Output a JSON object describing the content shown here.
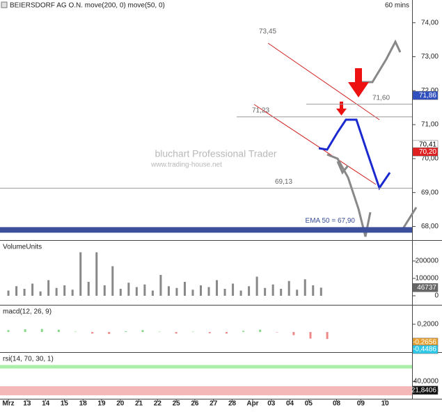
{
  "chart_data": [
    {
      "type": "line",
      "title": "BEIERSDORF AG O.N. move(200, 0) move(50, 0)",
      "subtitle": "60 mins",
      "watermark": [
        "bluchart Professional Trader",
        "www.trading-house.net"
      ],
      "xlim": [
        -0.45,
        21.65
      ],
      "ylim": [
        67.6,
        74.67
      ],
      "yticks": [
        {
          "value": 68,
          "label": "68,00"
        },
        {
          "value": 69,
          "label": "69,00"
        },
        {
          "value": 70,
          "label": "70,00"
        },
        {
          "value": 71,
          "label": "71,00"
        },
        {
          "value": 72,
          "label": "72,00"
        },
        {
          "value": 73,
          "label": "73,00"
        },
        {
          "value": 74,
          "label": "74,00"
        }
      ],
      "series": [
        {
          "color": "#111111",
          "x": [
            -0.26,
            0.67,
            1.24,
            1.8,
            2.55,
            3.3,
            3.86,
            4.42,
            4.79,
            5.36,
            5.73,
            6.29,
            6.85,
            7.42,
            7.72,
            7.98,
            8.54,
            8.91,
            9.48,
            9.85,
            10.41,
            10.97,
            11.54,
            11.91,
            12.28,
            12.66,
            13.03,
            13.6,
            13.97,
            14.23,
            14.72,
            15.09,
            15.47,
            15.73,
            16.03,
            16.4,
            16.7,
            17.0
          ],
          "values": [
            67.8,
            68.0,
            68.55,
            69.3,
            69.8,
            70.2,
            70.4,
            70.2,
            69.9,
            70.3,
            70.7,
            70.9,
            70.9,
            70.85,
            71.6,
            71.5,
            71.1,
            71.0,
            71.5,
            72.0,
            72.05,
            71.8,
            72.1,
            72.4,
            71.7,
            71.6,
            72.1,
            72.2,
            73.45,
            72.75,
            72.75,
            72.6,
            72.6,
            72.1,
            71.7,
            71.7,
            70.9,
            70.41
          ]
        },
        {
          "color": "#2a6fd6",
          "x": [
            1.05,
            3.3,
            5.17,
            7.42,
            9.29,
            10.79,
            12.28,
            13.78,
            14.91,
            16.03,
            16.97
          ],
          "values": [
            67.84,
            68.86,
            69.47,
            70.08,
            70.69,
            71.2,
            71.61,
            72.02,
            72.22,
            72.12,
            71.82
          ]
        },
        {
          "color": "#cc2020",
          "x": [
            6.29,
            8.91,
            11.54,
            13.78
          ],
          "values": [
            67.63,
            68.55,
            69.27,
            69.67
          ]
        }
      ],
      "levels": [
        {
          "value": 69.13,
          "label": "69,13"
        },
        {
          "value": 71.23,
          "label": "71,23"
        },
        {
          "value": 71.6,
          "label": "71,60"
        }
      ],
      "peak": {
        "value": 73.45,
        "label": "73,45"
      },
      "ema": {
        "value": 67.9,
        "label": "EMA 50 = 67,90",
        "color": "#3b4f9a"
      },
      "markers": [
        {
          "value": 71.86,
          "label": "71,86",
          "color": "#3050c0"
        },
        {
          "value": 70.41,
          "label": "70,41",
          "color": "#ffffff"
        },
        {
          "value": 70.2,
          "label": "70,20",
          "color": "#e02020"
        }
      ]
    },
    {
      "type": "bar",
      "title": "VolumeUnits",
      "xlim": [
        -0.45,
        21.65
      ],
      "ylim": [
        -48000,
        312000
      ],
      "yticks": [
        0,
        100000,
        200000
      ],
      "series": [
        {
          "color": "#888888",
          "x": [
            0,
            0.43,
            0.86,
            1.29,
            1.72,
            2.15,
            2.58,
            3.01,
            3.44,
            3.87,
            4.3,
            4.73,
            5.16,
            5.59,
            6.02,
            6.45,
            6.88,
            7.31,
            7.74,
            8.17,
            8.6,
            9.03,
            9.46,
            9.89,
            10.32,
            10.75,
            11.18,
            11.61,
            12.04,
            12.47,
            12.9,
            13.33,
            13.76,
            14.19,
            14.62,
            15.05,
            15.48,
            15.91,
            16.34,
            16.77
          ],
          "values": [
            30000,
            55000,
            40000,
            70000,
            25000,
            90000,
            45000,
            60000,
            35000,
            250000,
            80000,
            250000,
            60000,
            170000,
            40000,
            75000,
            50000,
            65000,
            30000,
            120000,
            55000,
            45000,
            80000,
            35000,
            60000,
            50000,
            90000,
            40000,
            70000,
            30000,
            55000,
            110000,
            45000,
            65000,
            40000,
            85000,
            35000,
            95000,
            60000,
            46737
          ]
        }
      ],
      "markers": [
        {
          "value": 46737,
          "color": "#666666"
        }
      ]
    },
    {
      "type": "line",
      "title": "macd(12, 26, 9)",
      "xlim": [
        -0.45,
        21.65
      ],
      "ylim": [
        -0.502,
        0.666
      ],
      "yticks": [
        {
          "value": 0.2,
          "label": "0,2000"
        }
      ],
      "series": [
        {
          "type": "bar",
          "color": "#8ad98a",
          "negative_color": "#f08a8a",
          "x": [
            0,
            0.9,
            1.8,
            2.7,
            3.6,
            4.5,
            5.4,
            6.3,
            7.2,
            8.1,
            9.0,
            9.9,
            10.8,
            11.7,
            12.6,
            13.5,
            14.4,
            15.3,
            16.2,
            17.1
          ],
          "values": [
            0.05,
            0.07,
            0.08,
            0.06,
            0.01,
            -0.04,
            -0.05,
            0.02,
            0.05,
            0.01,
            -0.04,
            0.01,
            -0.03,
            -0.04,
            0.03,
            0.06,
            -0.01,
            -0.08,
            -0.17,
            -0.18
          ]
        },
        {
          "color": "#2ec8e8",
          "x": [
            0,
            0.9,
            1.8,
            2.7,
            3.6,
            4.5,
            5.4,
            6.3,
            7.2,
            8.1,
            9.0,
            9.9,
            10.8,
            11.7,
            12.6,
            13.5,
            14.4,
            15.3,
            16.2,
            17.1
          ],
          "values": [
            0.05,
            0.15,
            0.25,
            0.3,
            0.28,
            0.2,
            0.15,
            0.22,
            0.3,
            0.28,
            0.2,
            0.25,
            0.18,
            0.12,
            0.2,
            0.3,
            0.25,
            0.1,
            -0.15,
            -0.4486
          ]
        },
        {
          "color": "#e8a030",
          "x": [
            0,
            0.9,
            1.8,
            2.7,
            3.6,
            4.5,
            5.4,
            6.3,
            7.2,
            8.1,
            9.0,
            9.9,
            10.8,
            11.7,
            12.6,
            13.5,
            14.4,
            15.3,
            16.2,
            17.1
          ],
          "values": [
            0.0,
            0.08,
            0.17,
            0.24,
            0.27,
            0.24,
            0.2,
            0.2,
            0.25,
            0.27,
            0.24,
            0.24,
            0.21,
            0.16,
            0.17,
            0.24,
            0.26,
            0.18,
            0.02,
            -0.2656
          ]
        }
      ],
      "markers": [
        {
          "value": -0.2656,
          "label": "-0,2656",
          "color": "#e8a030"
        },
        {
          "value": -0.4486,
          "label": "-0,4486",
          "color": "#2ec8e8"
        }
      ]
    },
    {
      "type": "line",
      "title": "rsi(14, 70, 30, 1)",
      "xlim": [
        -0.45,
        21.65
      ],
      "ylim": [
        5.7,
        97.1
      ],
      "yticks": [
        {
          "value": 20,
          "label": "20,0000"
        },
        {
          "value": 40,
          "label": "40,0000"
        }
      ],
      "overbought": 70,
      "oversold": 30,
      "series": [
        {
          "color": "#111111",
          "x": [
            0,
            0.59,
            1.18,
            1.77,
            2.36,
            2.95,
            3.54,
            4.13,
            4.72,
            5.31,
            5.9,
            6.49,
            7.08,
            7.67,
            8.26,
            8.85,
            9.44,
            10.03,
            10.62,
            11.21,
            11.8,
            12.39,
            12.98,
            13.57,
            14.16,
            14.75,
            15.34,
            15.93,
            16.52,
            17.11
          ],
          "values": [
            70,
            78,
            85,
            80,
            72,
            75,
            68,
            62,
            74,
            70,
            65,
            72,
            80,
            68,
            63,
            75,
            70,
            66,
            72,
            78,
            65,
            60,
            70,
            82,
            75,
            68,
            60,
            45,
            35,
            21.8406
          ]
        }
      ],
      "markers": [
        {
          "value": 21.8406,
          "label": "21,8406",
          "color": "#111111"
        }
      ],
      "xticks": [
        {
          "value": 0,
          "label": "Mrz"
        },
        {
          "value": 1,
          "label": "13"
        },
        {
          "value": 2,
          "label": "14"
        },
        {
          "value": 3,
          "label": "15"
        },
        {
          "value": 4,
          "label": "18"
        },
        {
          "value": 5,
          "label": "19"
        },
        {
          "value": 6,
          "label": "20"
        },
        {
          "value": 7,
          "label": "21"
        },
        {
          "value": 8,
          "label": "22"
        },
        {
          "value": 9,
          "label": "25"
        },
        {
          "value": 10,
          "label": "26"
        },
        {
          "value": 11,
          "label": "27"
        },
        {
          "value": 12,
          "label": "28"
        },
        {
          "value": 13.1,
          "label": "Apr"
        },
        {
          "value": 14.1,
          "label": "03"
        },
        {
          "value": 15.1,
          "label": "04"
        },
        {
          "value": 16.1,
          "label": "05"
        },
        {
          "value": 17.6,
          "label": "08"
        },
        {
          "value": 18.9,
          "label": "09"
        },
        {
          "value": 20.2,
          "label": "10"
        }
      ]
    }
  ]
}
